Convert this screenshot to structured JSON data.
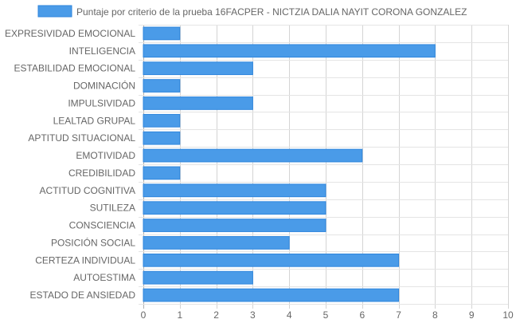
{
  "chart_data": {
    "type": "bar",
    "orientation": "horizontal",
    "legend_position": "top",
    "grid": true,
    "xlim": [
      0,
      10
    ],
    "xticks": [
      "0",
      "1",
      "2",
      "3",
      "4",
      "5",
      "6",
      "7",
      "8",
      "9",
      "10"
    ],
    "categories": [
      "EXPRESIVIDAD EMOCIONAL",
      "INTELIGENCIA",
      "ESTABILIDAD EMOCIONAL",
      "DOMINACIÓN",
      "IMPULSIVIDAD",
      "LEALTAD GRUPAL",
      "APTITUD SITUACIONAL",
      "EMOTIVIDAD",
      "CREDIBILIDAD",
      "ACTITUD COGNITIVA",
      "SUTILEZA",
      "CONSCIENCIA",
      "POSICIÓN SOCIAL",
      "CERTEZA INDIVIDUAL",
      "AUTOESTIMA",
      "ESTADO DE ANSIEDAD"
    ],
    "series": [
      {
        "name": "Puntaje por criterio de la prueba 16FACPER - NICTZIA DALIA NAYIT CORONA GONZALEZ",
        "values": [
          1,
          8,
          3,
          1,
          3,
          1,
          1,
          6,
          1,
          5,
          5,
          5,
          4,
          7,
          3,
          7
        ],
        "color": "#4a9be8",
        "border_color": "#2f86dd"
      }
    ]
  }
}
